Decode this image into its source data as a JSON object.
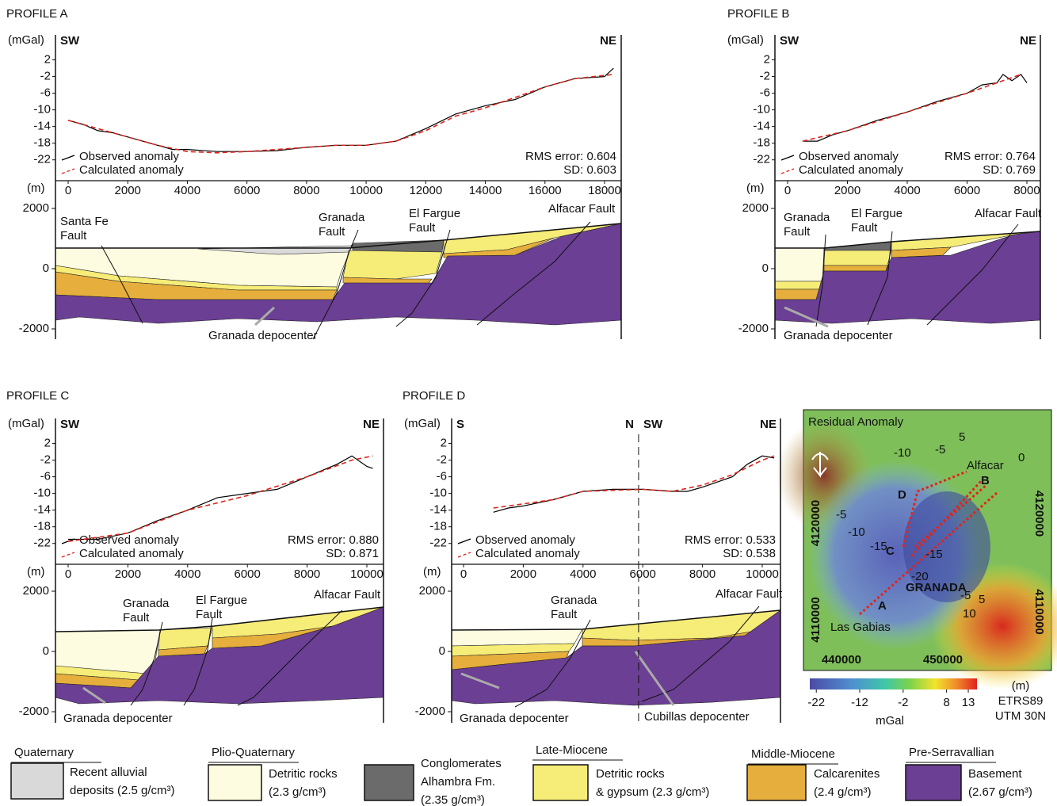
{
  "chart_data": [
    {
      "type": "line",
      "title": "PROFILE A",
      "ylabel": "(mGal)",
      "xlabel": "(m)",
      "direction_labels": [
        "SW",
        "NE"
      ],
      "xlim": [
        -425,
        18558
      ],
      "xticks": [
        0,
        2000,
        4000,
        6000,
        8000,
        10000,
        12000,
        14000,
        16000,
        18000
      ],
      "ylim": [
        -27,
        8
      ],
      "yticks": [
        2,
        -2,
        -6,
        -10,
        -14,
        -18,
        -22
      ],
      "series": [
        {
          "name": "Observed anomaly",
          "color": "#000000",
          "style": "solid",
          "x": [
            0,
            500,
            1000,
            1500,
            2000,
            2500,
            3000,
            3500,
            4000,
            5000,
            6000,
            7000,
            8000,
            9000,
            10000,
            11000,
            12000,
            13000,
            14000,
            15000,
            16000,
            17000,
            18000,
            18300
          ],
          "values": [
            -12.5,
            -13.5,
            -15,
            -15.5,
            -16.5,
            -17.5,
            -18.5,
            -19.5,
            -19.5,
            -20,
            -20,
            -19.8,
            -19,
            -18.5,
            -18.5,
            -17.5,
            -14.5,
            -11,
            -9,
            -7.5,
            -4.5,
            -2.5,
            -2,
            0
          ]
        },
        {
          "name": "Calculated anomaly",
          "color": "#e0241b",
          "style": "dashed",
          "x": [
            0,
            1000,
            2000,
            3000,
            4000,
            5000,
            6000,
            7000,
            8000,
            9000,
            10000,
            11000,
            12000,
            13000,
            14000,
            15000,
            16000,
            17000,
            18300
          ],
          "values": [
            -12.5,
            -14.5,
            -16.5,
            -18.5,
            -20,
            -20.3,
            -20,
            -19.5,
            -19,
            -18.5,
            -18.5,
            -17.5,
            -15,
            -11.5,
            -9.5,
            -7,
            -4.5,
            -2.5,
            -1.5
          ]
        }
      ],
      "annotations": [
        "RMS error: 0.604",
        "SD:  0.603"
      ],
      "section": {
        "ylim": [
          -2342,
          2921
        ],
        "yticks": [
          2000,
          0,
          -2000
        ],
        "labels": [
          {
            "lines": [
              "Santa Fe",
              "Fault"
            ]
          },
          {
            "lines": [
              "Granada",
              "Fault"
            ]
          },
          {
            "lines": [
              "El Fargue",
              "Fault"
            ]
          },
          {
            "lines": [
              "Alfacar Fault"
            ]
          },
          {
            "lines": [
              "Granada depocenter"
            ]
          }
        ]
      }
    },
    {
      "type": "line",
      "title": "PROFILE B",
      "ylabel": "(mGal)",
      "xlabel": "(m)",
      "direction_labels": [
        "SW",
        "NE"
      ],
      "xlim": [
        -424,
        8450
      ],
      "xticks": [
        0,
        2000,
        4000,
        6000,
        8000
      ],
      "ylim": [
        -27,
        8
      ],
      "yticks": [
        2,
        -2,
        -6,
        -10,
        -14,
        -18,
        -22
      ],
      "series": [
        {
          "name": "Observed anomaly",
          "color": "#000000",
          "style": "solid",
          "x": [
            500,
            1000,
            1500,
            2000,
            3000,
            4000,
            5000,
            6000,
            6500,
            7000,
            7200,
            7500,
            7800,
            8000
          ],
          "values": [
            -17.5,
            -17.5,
            -16,
            -15,
            -12.5,
            -10.5,
            -8,
            -6,
            -4,
            -3.5,
            -1.5,
            -3,
            -1.5,
            -3.5
          ]
        },
        {
          "name": "Calculated anomaly",
          "color": "#e0241b",
          "style": "dashed",
          "x": [
            500,
            2000,
            4000,
            6000,
            7000,
            7800
          ],
          "values": [
            -17.5,
            -15,
            -10.5,
            -6,
            -3.5,
            -1.5
          ]
        }
      ],
      "annotations": [
        "RMS error: 0.764",
        "SD:  0.769"
      ],
      "section": {
        "ylim": [
          -2342,
          2921
        ],
        "yticks": [
          2000,
          0,
          -2000
        ],
        "labels": [
          {
            "lines": [
              "Granada",
              "Fault"
            ]
          },
          {
            "lines": [
              "El Fargue",
              "Fault"
            ]
          },
          {
            "lines": [
              "Alfacar Fault"
            ]
          },
          {
            "lines": [
              "Granada depocenter"
            ]
          }
        ]
      }
    },
    {
      "type": "line",
      "title": "PROFILE C",
      "ylabel": "(mGal)",
      "xlabel": "(m)",
      "direction_labels": [
        "SW",
        "NE"
      ],
      "xlim": [
        -424,
        10557
      ],
      "xticks": [
        0,
        2000,
        4000,
        6000,
        8000,
        10000
      ],
      "ylim": [
        -27,
        8
      ],
      "yticks": [
        2,
        -2,
        -6,
        -10,
        -14,
        -18,
        -22
      ],
      "series": [
        {
          "name": "Observed anomaly",
          "color": "#000000",
          "style": "solid",
          "x": [
            0,
            1000,
            2000,
            3000,
            4000,
            5000,
            6000,
            7000,
            8000,
            9000,
            9500,
            10000,
            10200
          ],
          "values": [
            -21,
            -21,
            -19.5,
            -16.5,
            -14,
            -11,
            -10,
            -9,
            -6,
            -3,
            -1,
            -3.5,
            -4
          ]
        },
        {
          "name": "Calculated anomaly",
          "color": "#e0241b",
          "style": "dashed",
          "x": [
            0,
            2000,
            4000,
            6000,
            8000,
            9500,
            10200
          ],
          "values": [
            -21.5,
            -19.5,
            -14,
            -10.5,
            -6,
            -2,
            -1
          ]
        }
      ],
      "annotations": [
        "RMS error: 0.880",
        "SD: 0.871"
      ],
      "section": {
        "ylim": [
          -2368,
          2895
        ],
        "yticks": [
          2000,
          0,
          -2000
        ],
        "labels": [
          {
            "lines": [
              "Granada",
              "Fault"
            ]
          },
          {
            "lines": [
              "El Fargue",
              "Fault"
            ]
          },
          {
            "lines": [
              "Alfacar Fault"
            ]
          },
          {
            "lines": [
              "Granada depocenter"
            ]
          }
        ]
      }
    },
    {
      "type": "line",
      "title": "PROFILE D",
      "ylabel": "(mGal)",
      "xlabel": "(m)",
      "direction_labels": [
        "S",
        "N",
        "SW",
        "NE"
      ],
      "junction_x": 5860,
      "xlim": [
        -398,
        10610
      ],
      "xticks": [
        0,
        2000,
        4000,
        6000,
        8000,
        10000
      ],
      "ylim": [
        -27,
        8
      ],
      "yticks": [
        2,
        -2,
        -6,
        -10,
        -14,
        -18,
        -22
      ],
      "series": [
        {
          "name": "Observed anomaly",
          "color": "#000000",
          "style": "solid",
          "x": [
            1000,
            1500,
            2000,
            3000,
            4000,
            5000,
            6000,
            7000,
            7500,
            8000,
            9000,
            9500,
            10000,
            10400
          ],
          "values": [
            -14.5,
            -13.5,
            -13,
            -11.5,
            -9.5,
            -9,
            -9,
            -9.5,
            -9.5,
            -8.5,
            -6,
            -3,
            -1,
            -1.5
          ]
        },
        {
          "name": "Calculated anomaly",
          "color": "#e0241b",
          "style": "dashed",
          "x": [
            1000,
            3000,
            4000,
            6000,
            7000,
            8000,
            9000,
            10000,
            10400
          ],
          "values": [
            -13.5,
            -11.5,
            -9.5,
            -9,
            -9.5,
            -8,
            -5.5,
            -2,
            -1
          ]
        }
      ],
      "annotations": [
        "RMS error: 0.533",
        "SD: 0.538"
      ],
      "section": {
        "ylim": [
          -2368,
          2895
        ],
        "yticks": [
          2000,
          0,
          -2000
        ],
        "labels": [
          {
            "lines": [
              "Granada",
              "Fault"
            ]
          },
          {
            "lines": [
              "Alfacar Fault"
            ]
          },
          {
            "lines": [
              "Granada depocenter"
            ]
          },
          {
            "lines": [
              "Cubillas depocenter"
            ]
          }
        ]
      }
    }
  ],
  "map": {
    "title": "Residual Anomaly",
    "labels": [
      "Alfacar",
      "B",
      "D",
      "C",
      "A",
      "GRANADA",
      "Las Gabias"
    ],
    "coordinates": [
      "4120000",
      "4110000",
      "4120000",
      "4110000",
      "440000",
      "450000"
    ],
    "contour_labels": [
      "-5",
      "-10",
      "0",
      "5",
      "-5",
      "-10",
      "-15",
      "-20",
      "-15",
      "-5",
      "10",
      "5"
    ],
    "colorbar": {
      "lim": [
        -23.5,
        15
      ],
      "ticks": [
        -22,
        -12,
        -2,
        8,
        13
      ],
      "label": "mGal",
      "notes": [
        "(m)",
        "ETRS89",
        "UTM 30N"
      ]
    }
  },
  "legend": {
    "groups": [
      {
        "title": "Quaternary",
        "items": [
          {
            "lines": [
              "Recent alluvial",
              "deposits (2.5 g/cm³)"
            ],
            "color": "#d9d9d9"
          }
        ]
      },
      {
        "title": "Plio-Quaternary",
        "items": [
          {
            "lines": [
              "Detritic rocks",
              "(2.3 g/cm³)"
            ],
            "color": "#fdfbe0"
          },
          {
            "lines": [
              "Conglomerates",
              "Alhambra Fm.",
              "(2.35 g/cm³)"
            ],
            "color": "#6b6b6b"
          }
        ]
      },
      {
        "title": "Late-Miocene",
        "items": [
          {
            "lines": [
              "Detritic rocks",
              "& gypsum (2.3 g/cm³)"
            ],
            "color": "#f6ec78"
          }
        ]
      },
      {
        "title": "Middle-Miocene",
        "items": [
          {
            "lines": [
              "Calcarenites",
              "(2.4 g/cm³)"
            ],
            "color": "#e6ae3c"
          }
        ]
      },
      {
        "title": "Pre-Serravallian",
        "items": [
          {
            "lines": [
              "Basement",
              "(2.67 g/cm³)"
            ],
            "color": "#6b3f93"
          }
        ]
      }
    ]
  }
}
